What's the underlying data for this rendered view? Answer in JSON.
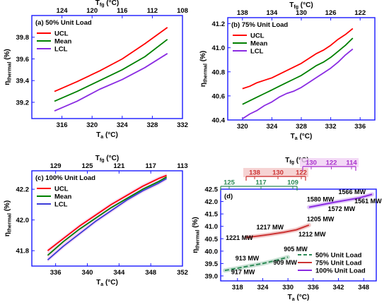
{
  "chart_data": [
    {
      "id": "a",
      "type": "line",
      "title": "(a) 50% Unit Load",
      "xlabel": "T_a (°C)",
      "ylabel": "η_thermal (%)",
      "top_label": "T_fg (°C)",
      "xlim": [
        312,
        332
      ],
      "ylim": [
        39.05,
        40.0
      ],
      "xticks": [
        "316",
        "320",
        "324",
        "328",
        "332"
      ],
      "yticks": [
        "39.2",
        "39.4",
        "39.6",
        "39.8"
      ],
      "top_ticks": [
        "124",
        "120",
        "116",
        "112",
        "108"
      ],
      "legend_position": "top-left",
      "x": [
        315,
        318,
        321,
        324,
        327,
        330
      ],
      "series": [
        {
          "name": "UCL",
          "color": "#ff0000",
          "values": [
            39.3,
            39.39,
            39.49,
            39.6,
            39.74,
            39.89
          ]
        },
        {
          "name": "Mean",
          "color": "#008000",
          "values": [
            39.21,
            39.3,
            39.4,
            39.5,
            39.62,
            39.78
          ]
        },
        {
          "name": "LCL",
          "color": "#8a2be2",
          "values": [
            39.12,
            39.21,
            39.32,
            39.41,
            39.52,
            39.65
          ]
        }
      ]
    },
    {
      "id": "b",
      "type": "line",
      "title": "(b) 75% Unit Load",
      "xlabel": "T_a (°C)",
      "ylabel": "η_thermal (%)",
      "top_label": "T_fg (°C)",
      "xlim": [
        318,
        338
      ],
      "ylim": [
        40.4,
        41.25
      ],
      "xticks": [
        "320",
        "324",
        "328",
        "332",
        "336"
      ],
      "yticks": [
        "40.4",
        "40.6",
        "40.8",
        "41.0",
        "41.2"
      ],
      "top_ticks": [
        "138",
        "134",
        "130",
        "126",
        "122"
      ],
      "legend_position": "top-left",
      "x": [
        320,
        321,
        322,
        323,
        324,
        325,
        326,
        327,
        328,
        329,
        330,
        331,
        332,
        333,
        334,
        335
      ],
      "series": [
        {
          "name": "UCL",
          "color": "#ff0000",
          "values": [
            40.66,
            40.68,
            40.71,
            40.73,
            40.75,
            40.78,
            40.81,
            40.84,
            40.87,
            40.91,
            40.95,
            40.98,
            41.02,
            41.07,
            41.11,
            41.16
          ]
        },
        {
          "name": "Mean",
          "color": "#008000",
          "values": [
            40.53,
            40.56,
            40.59,
            40.62,
            40.65,
            40.68,
            40.71,
            40.74,
            40.77,
            40.81,
            40.85,
            40.88,
            40.92,
            40.97,
            41.02,
            41.08
          ]
        },
        {
          "name": "LCL",
          "color": "#8a2be2",
          "values": [
            40.41,
            40.45,
            40.48,
            40.52,
            40.55,
            40.59,
            40.62,
            40.64,
            40.67,
            40.71,
            40.75,
            40.79,
            40.83,
            40.88,
            40.94,
            40.99
          ]
        }
      ]
    },
    {
      "id": "c",
      "type": "line",
      "title": "(c) 100% Unit Load",
      "xlabel": "T_a (°C)",
      "ylabel": "η_thermal (%)",
      "top_label": "T_fg (°C)",
      "xlim": [
        333,
        352
      ],
      "ylim": [
        41.7,
        42.32
      ],
      "xticks": [
        "336",
        "340",
        "344",
        "348",
        "352"
      ],
      "yticks": [
        "41.8",
        "42.0",
        "42.2"
      ],
      "top_ticks": [
        "129",
        "125",
        "121",
        "117",
        "113"
      ],
      "legend_position": "top-left",
      "x": [
        335,
        337,
        339,
        341,
        343,
        345,
        347,
        349,
        350
      ],
      "series": [
        {
          "name": "UCL",
          "color": "#ff0000",
          "values": [
            41.8,
            41.88,
            41.96,
            42.03,
            42.1,
            42.16,
            42.22,
            42.27,
            42.29
          ]
        },
        {
          "name": "Mean",
          "color": "#008000",
          "values": [
            41.77,
            41.86,
            41.94,
            42.01,
            42.08,
            42.14,
            42.2,
            42.25,
            42.28
          ]
        },
        {
          "name": "LCL",
          "color": "#3b3bd8",
          "values": [
            41.74,
            41.83,
            41.91,
            41.99,
            42.06,
            42.13,
            42.19,
            42.24,
            42.27
          ]
        }
      ]
    },
    {
      "id": "d",
      "type": "line",
      "title": "(d)",
      "xlabel": "T_a (°C)",
      "ylabel": "η_thermal (%)",
      "top_label": "T_fg (°C)",
      "xlim": [
        314,
        351
      ],
      "ylim": [
        38.8,
        42.5
      ],
      "xticks": [
        "318",
        "324",
        "330",
        "336",
        "342",
        "348"
      ],
      "yticks": [
        "39.0",
        "39.5",
        "40.0",
        "40.5",
        "41.0",
        "41.5",
        "42.0",
        "42.5"
      ],
      "legend_position": "bottom-right",
      "top_axes": [
        {
          "color": "#2e8b57",
          "ticks": [
            "125",
            "117",
            "109"
          ],
          "xstart": 314,
          "xend": 330
        },
        {
          "color": "#cc3333",
          "ticks": [
            "138",
            "130",
            "122"
          ],
          "xstart": 318,
          "xend": 336
        },
        {
          "color": "#aa33cc",
          "ticks": [
            "130",
            "122",
            "114"
          ],
          "xstart": 336,
          "xend": 350
        }
      ],
      "series": [
        {
          "name": "50% Unit Load",
          "color": "#2e8b57",
          "dashed": true,
          "x": [
            315,
            318,
            321,
            324,
            327,
            330
          ],
          "values": [
            39.22,
            39.31,
            39.41,
            39.5,
            39.62,
            39.76
          ]
        },
        {
          "name": "75% Unit Load",
          "color": "#cc3333",
          "dashed": false,
          "x": [
            320,
            323,
            326,
            329,
            332,
            335
          ],
          "values": [
            40.55,
            40.61,
            40.68,
            40.76,
            40.86,
            41.05
          ]
        },
        {
          "name": "100% Unit Load",
          "color": "#8a2be2",
          "dashed": false,
          "x": [
            335,
            338,
            341,
            344,
            347,
            350
          ],
          "values": [
            41.77,
            41.87,
            41.97,
            42.06,
            42.15,
            42.29
          ]
        }
      ],
      "annotations": [
        {
          "text": "917 MW",
          "x": 316.5,
          "y": 39.07
        },
        {
          "text": "913 MW",
          "x": 317.5,
          "y": 39.62
        },
        {
          "text": "909 MW",
          "x": 326.5,
          "y": 39.45
        },
        {
          "text": "905 MW",
          "x": 329,
          "y": 40.0
        },
        {
          "text": "1221 MW",
          "x": 315.2,
          "y": 40.45
        },
        {
          "text": "1217 MW",
          "x": 322.5,
          "y": 40.88
        },
        {
          "text": "1212 MW",
          "x": 332.5,
          "y": 40.6
        },
        {
          "text": "1205 MW",
          "x": 334.5,
          "y": 41.2
        },
        {
          "text": "1580 MW",
          "x": 334.5,
          "y": 42.0
        },
        {
          "text": "1572 MW",
          "x": 339.5,
          "y": 41.62
        },
        {
          "text": "1566 MW",
          "x": 342,
          "y": 42.3
        },
        {
          "text": "1561 MW",
          "x": 345.8,
          "y": 41.93
        }
      ]
    }
  ]
}
